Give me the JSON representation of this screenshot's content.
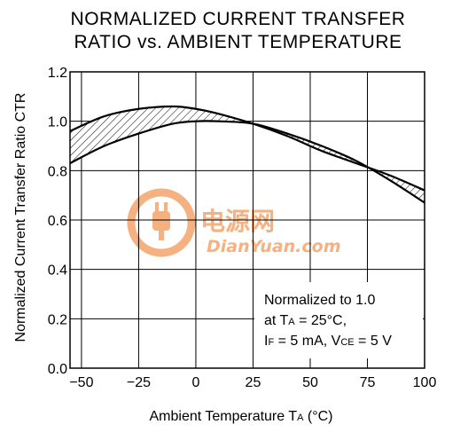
{
  "chart_data": {
    "type": "area",
    "title_lines": [
      "NORMALIZED CURRENT TRANSFER",
      "RATIO vs. AMBIENT TEMPERATURE"
    ],
    "xlabel": "Ambient Temperature",
    "xlabel_symbol": "T",
    "xlabel_sub": "A",
    "xlabel_unit": "(°C)",
    "ylabel": "Normalized Current Transfer Ratio  CTR",
    "xlim": [
      -55,
      100
    ],
    "ylim": [
      0,
      1.2
    ],
    "x_ticks": [
      -50,
      -25,
      0,
      25,
      50,
      75,
      100
    ],
    "x_tick_labels": [
      "−50",
      "−25",
      "0",
      "25",
      "50",
      "75",
      "100"
    ],
    "y_ticks": [
      0,
      0.2,
      0.4,
      0.6,
      0.8,
      1.0,
      1.2
    ],
    "y_tick_labels": [
      "0.0",
      "0.2",
      "0.4",
      "0.6",
      "0.8",
      "1.0",
      "1.2"
    ],
    "grid": true,
    "series": [
      {
        "x": [
          -55,
          -40,
          -25,
          -10,
          0,
          10,
          25,
          40,
          55,
          70,
          85,
          100
        ],
        "y": [
          0.96,
          1.02,
          1.05,
          1.06,
          1.05,
          1.03,
          0.99,
          0.94,
          0.88,
          0.83,
          0.78,
          0.72
        ]
      },
      {
        "x": [
          -55,
          -40,
          -25,
          -10,
          0,
          10,
          25,
          40,
          55,
          70,
          85,
          100
        ],
        "y": [
          0.83,
          0.9,
          0.95,
          0.99,
          1.0,
          1.0,
          0.99,
          0.95,
          0.9,
          0.84,
          0.76,
          0.67
        ]
      }
    ],
    "annotation_lines": [
      {
        "pre": "Normalized to 1.0",
        "sub": "",
        "post": ""
      },
      {
        "pre": "at T",
        "sub": "A",
        "post": " = 25°C,"
      },
      {
        "pre": "I",
        "sub": "F",
        "post": " = 5 mA, V"
      },
      {
        "pre": "",
        "sub": "CE",
        "post": " = 5 V"
      }
    ]
  },
  "watermark": {
    "cn_text": "电源网",
    "en_text": "DianYuan.com",
    "icon": "plug-icon",
    "color": "#f5a46b"
  },
  "colors": {
    "line": "#000000",
    "grid": "#000000",
    "hatch": "#000000"
  }
}
